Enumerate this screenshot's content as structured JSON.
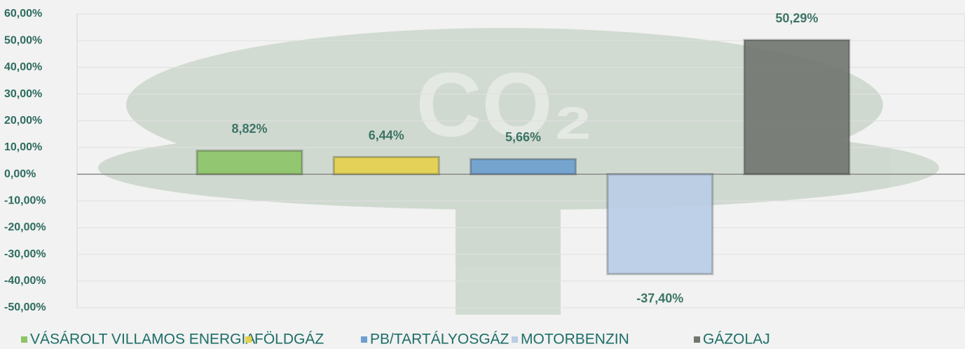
{
  "chart_data": {
    "type": "bar",
    "series": [
      {
        "name": "VÁSÁROLT VILLAMOS ENERGIA",
        "color": "#8dc466",
        "values": [
          8.82
        ],
        "value_labels": [
          "8,82%"
        ]
      },
      {
        "name": "FÖLDGÁZ",
        "color": "#e6d24a",
        "values": [
          6.44
        ],
        "value_labels": [
          "6,44%"
        ]
      },
      {
        "name": "PB/TARTÁLYOSGÁZ",
        "color": "#6c9fcf",
        "values": [
          5.66
        ],
        "value_labels": [
          "5,66%"
        ]
      },
      {
        "name": "MOTORBENZIN",
        "color": "#b9cde6",
        "values": [
          -37.4
        ],
        "value_labels": [
          "-37,40%"
        ]
      },
      {
        "name": "GÁZOLAJ",
        "color": "#717570",
        "values": [
          50.29
        ],
        "value_labels": [
          "50,29%"
        ]
      }
    ],
    "ylim": [
      -50,
      60
    ],
    "yticks": [
      {
        "value": -50,
        "label": "-50,00%"
      },
      {
        "value": -40,
        "label": "-40,00%"
      },
      {
        "value": -30,
        "label": "-30,00%"
      },
      {
        "value": -20,
        "label": "-20,00%"
      },
      {
        "value": -10,
        "label": "-10,00%"
      },
      {
        "value": 0,
        "label": "0,00%"
      },
      {
        "value": 10,
        "label": "10,00%"
      },
      {
        "value": 20,
        "label": "20,00%"
      },
      {
        "value": 30,
        "label": "30,00%"
      },
      {
        "value": 40,
        "label": "40,00%"
      },
      {
        "value": 50,
        "label": "50,00%"
      },
      {
        "value": 60,
        "label": "60,00%"
      }
    ],
    "grid": true,
    "legend": "bottom"
  }
}
